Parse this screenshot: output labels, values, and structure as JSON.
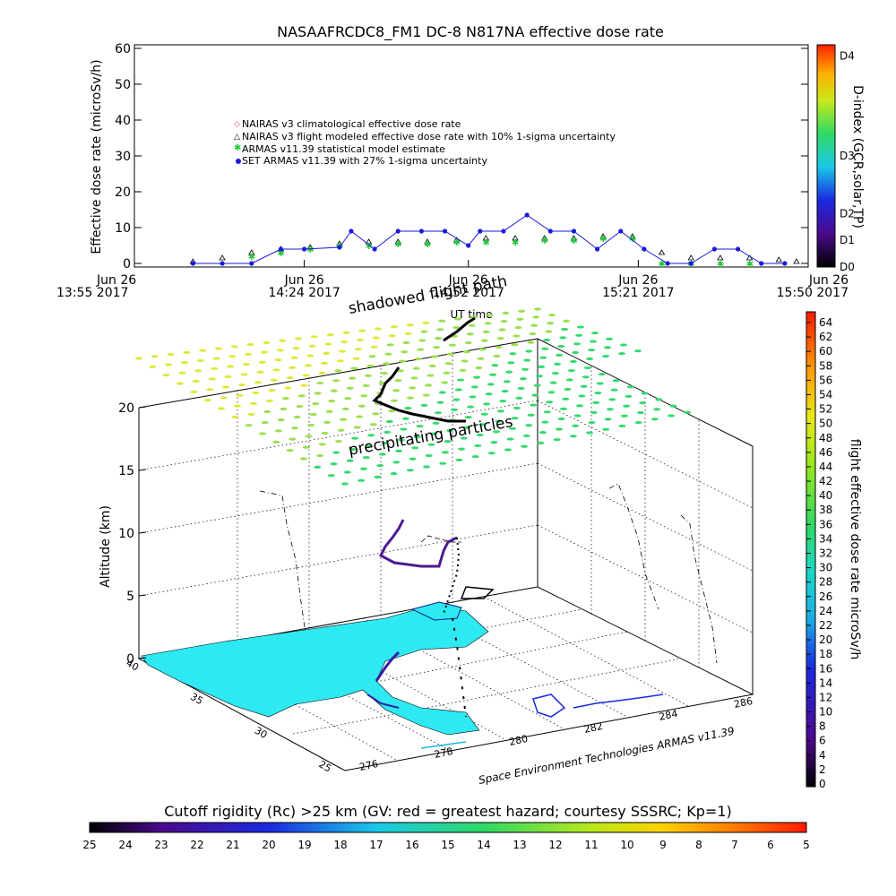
{
  "top_chart": {
    "title": "NASAAFRCDC8_FM1 DC-8    N817NA effective dose rate",
    "ylabel": "Effective dose rate (microSv/h)",
    "xlabel": "UT time",
    "x_ticks": [
      {
        "date": "Jun 26",
        "time": "13:55 2017"
      },
      {
        "date": "Jun 26",
        "time": "14:24 2017"
      },
      {
        "date": "Jun 26",
        "time": "14:52 2017"
      },
      {
        "date": "Jun 26",
        "time": "15:21 2017"
      },
      {
        "date": "Jun 26",
        "time": "15:50 2017"
      }
    ],
    "y_ticks": [
      "0",
      "10",
      "20",
      "30",
      "40",
      "50",
      "60"
    ],
    "legend": [
      "NAIRAS v3 climatological effective dose rate",
      "NAIRAS v3 flight modeled effective dose rate with 10% 1-sigma uncertainty",
      "ARMAS v11.39 statistical model estimate",
      "SET ARMAS v11.39 with 27% 1-sigma uncertainty"
    ],
    "dindex_label": "D-index (GCR,solar,TP)",
    "dindex_ticks": [
      "D0",
      "D1",
      "D2",
      "D3",
      "D4"
    ]
  },
  "main_chart": {
    "zlabel": "Altitude (km)",
    "z_ticks": [
      "0",
      "5",
      "10",
      "15",
      "20"
    ],
    "lat_ticks": [
      "40",
      "35",
      "30",
      "25"
    ],
    "lon_ticks": [
      "276",
      "278",
      "280",
      "282",
      "284",
      "286"
    ],
    "annotation_shadowed": "shadowed flight path",
    "annotation_precip": "precipitating particles",
    "credit": "Space Environment Technologies ARMAS v11.39",
    "colorbar_label": "flight effective dose rate microSv/h",
    "colorbar_ticks": [
      "0",
      "2",
      "4",
      "6",
      "8",
      "10",
      "12",
      "14",
      "16",
      "18",
      "20",
      "22",
      "24",
      "26",
      "28",
      "30",
      "32",
      "34",
      "36",
      "38",
      "40",
      "42",
      "44",
      "46",
      "48",
      "50",
      "52",
      "54",
      "56",
      "58",
      "60",
      "62",
      "64"
    ]
  },
  "bottom_bar": {
    "title": "Cutoff rigidity (Rc) >25 km (GV: red = greatest hazard; courtesy SSSRC; Kp=1)",
    "ticks": [
      "25",
      "24",
      "23",
      "22",
      "21",
      "20",
      "19",
      "18",
      "17",
      "16",
      "15",
      "14",
      "13",
      "12",
      "11",
      "10",
      "9",
      "8",
      "7",
      "6",
      "5"
    ]
  },
  "chart_data": {
    "type": "scatter",
    "title": "NASAAFRCDC8_FM1 DC-8    N817NA effective dose rate",
    "xlabel": "UT time",
    "ylabel": "Effective dose rate (microSv/h)",
    "ylim": [
      0,
      60
    ],
    "xlim": [
      "13:55",
      "15:50"
    ],
    "series": [
      {
        "name": "NAIRAS v3 flight modeled effective dose rate with 10% 1-sigma uncertainty",
        "x": [
          "14:05",
          "14:10",
          "14:15",
          "14:20",
          "14:25",
          "14:30",
          "14:35",
          "14:40",
          "14:45",
          "14:50",
          "14:55",
          "15:00",
          "15:05",
          "15:10",
          "15:15",
          "15:20",
          "15:25",
          "15:30",
          "15:35",
          "15:40",
          "15:45",
          "15:48"
        ],
        "values": [
          0.5,
          1.5,
          3,
          4,
          4.5,
          5.5,
          6,
          6,
          6,
          6.5,
          7,
          7,
          7,
          7,
          7.5,
          7.5,
          3,
          1.5,
          1.5,
          1.5,
          1,
          0.5
        ]
      },
      {
        "name": "ARMAS v11.39 statistical model estimate",
        "x": [
          "14:15",
          "14:20",
          "14:25",
          "14:30",
          "14:35",
          "14:40",
          "14:45",
          "14:50",
          "14:55",
          "15:00",
          "15:05",
          "15:10",
          "15:15",
          "15:20",
          "15:25",
          "15:30",
          "15:35",
          "15:40"
        ],
        "values": [
          2,
          3,
          4,
          5,
          5,
          5.5,
          5.5,
          6,
          6,
          6,
          6.5,
          6.5,
          7,
          7,
          0,
          0,
          0,
          0
        ]
      },
      {
        "name": "SET ARMAS v11.39 with 27% 1-sigma uncertainty",
        "x": [
          "14:05",
          "14:10",
          "14:15",
          "14:20",
          "14:24",
          "14:30",
          "14:32",
          "14:36",
          "14:40",
          "14:44",
          "14:48",
          "14:52",
          "14:54",
          "14:58",
          "15:02",
          "15:06",
          "15:10",
          "15:14",
          "15:18",
          "15:22",
          "15:26",
          "15:30",
          "15:34",
          "15:38",
          "15:42",
          "15:46"
        ],
        "values": [
          0,
          0,
          0,
          4,
          4,
          4.5,
          9,
          4,
          9,
          9,
          9,
          5,
          9,
          9,
          13.5,
          9,
          9,
          4,
          9,
          4,
          0,
          0,
          4,
          4,
          0,
          0
        ]
      }
    ]
  },
  "colors": {
    "precip_green": "#37d96f",
    "map_land": "#2ee8f2",
    "series_blue": "#1a1adb",
    "armas_green": "#22c83a"
  }
}
